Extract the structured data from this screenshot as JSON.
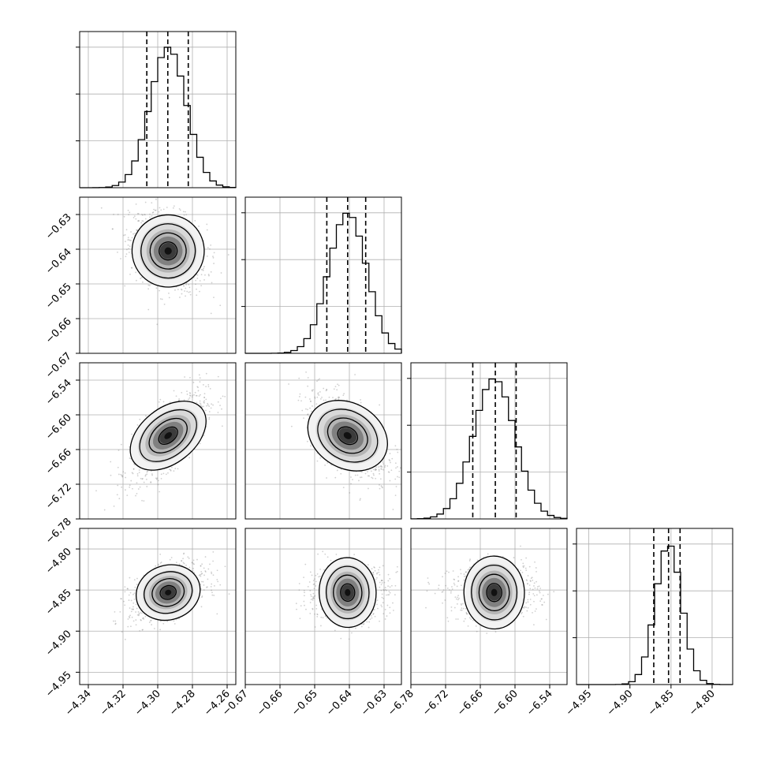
{
  "chart_data": {
    "type": "corner",
    "grid": true,
    "n_params": 4,
    "params": [
      {
        "range": [
          -4.345,
          -4.255
        ],
        "ticks": [
          -4.34,
          -4.32,
          -4.3,
          -4.28,
          -4.26
        ],
        "tick_labels": [
          "−4.34",
          "−4.32",
          "−4.30",
          "−4.28",
          "−4.26"
        ],
        "quantiles": [
          -4.3063,
          -4.2942,
          -4.2824
        ],
        "hist_mean": -4.294,
        "hist_sd": 0.0105
      },
      {
        "range": [
          -0.67,
          -0.625
        ],
        "ticks": [
          -0.67,
          -0.66,
          -0.65,
          -0.64,
          -0.63
        ],
        "tick_labels": [
          "−0.67",
          "−0.66",
          "−0.65",
          "−0.64",
          "−0.63"
        ],
        "quantiles": [
          -0.6465,
          -0.6405,
          -0.6353
        ],
        "hist_mean": -0.6405,
        "hist_sd": 0.0055
      },
      {
        "range": [
          -6.78,
          -6.51
        ],
        "ticks": [
          -6.78,
          -6.72,
          -6.66,
          -6.6,
          -6.54
        ],
        "tick_labels": [
          "−6.78",
          "−6.72",
          "−6.66",
          "−6.60",
          "−6.54"
        ],
        "quantiles": [
          -6.673,
          -6.634,
          -6.598
        ],
        "hist_mean": -6.636,
        "hist_sd": 0.036
      },
      {
        "range": [
          -4.965,
          -4.775
        ],
        "ticks": [
          -4.95,
          -4.9,
          -4.85,
          -4.8
        ],
        "tick_labels": [
          "−4.95",
          "−4.90",
          "−4.85",
          "−4.80"
        ],
        "quantiles": [
          -4.871,
          -4.853,
          -4.839
        ],
        "hist_mean": -4.853,
        "hist_sd": 0.016
      }
    ],
    "correlations": [
      {
        "row": 1,
        "col": 0,
        "rho": -0.3
      },
      {
        "row": 2,
        "col": 0,
        "rho": 0.7
      },
      {
        "row": 2,
        "col": 1,
        "rho": -0.55
      },
      {
        "row": 3,
        "col": 0,
        "rho": 0.45
      },
      {
        "row": 3,
        "col": 1,
        "rho": 0.05
      },
      {
        "row": 3,
        "col": 2,
        "rho": 0.05
      }
    ],
    "colors": {
      "line": "#000000",
      "grid": "#b0b0b0",
      "points": "#777777"
    }
  }
}
